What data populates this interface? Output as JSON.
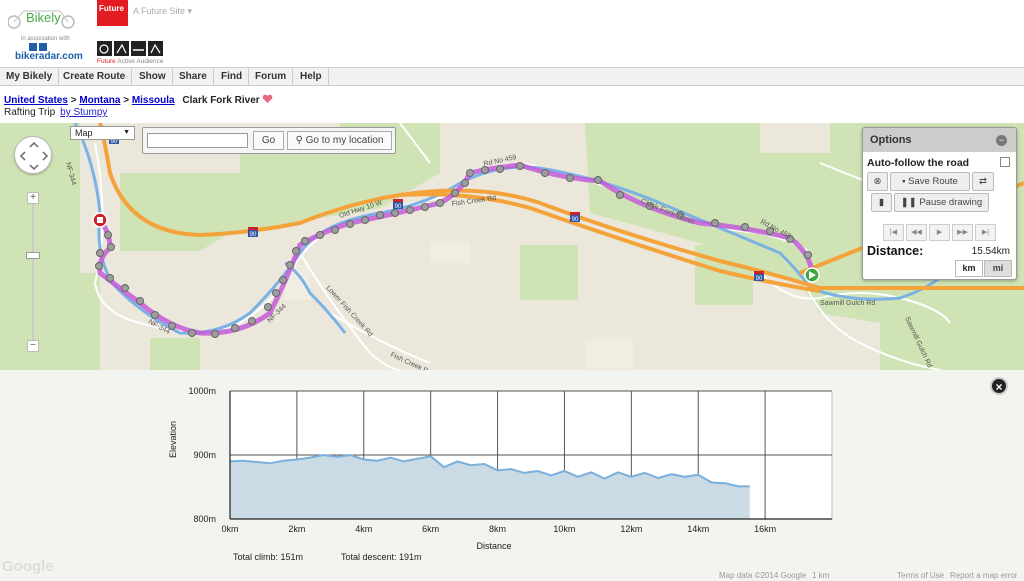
{
  "header": {
    "logo_text": "Bikely",
    "assoc_text": "in association with",
    "bikeradar_text": "bikeradar.com",
    "future_badge": "Future",
    "future_site_label": "A Future Site ▾",
    "audience_prefix": "Future",
    "audience_text": "Active Audience"
  },
  "nav": {
    "items": [
      "My Bikely",
      "Create Route",
      "Show",
      "Share",
      "Find",
      "Forum",
      "Help"
    ]
  },
  "breadcrumb": {
    "country": "United States",
    "state": "Montana",
    "city": "Missoula",
    "route_name": "Clark Fork River",
    "sep": ">"
  },
  "route_meta": {
    "type": "Rafting Trip",
    "author_link": "by Stumpy"
  },
  "map": {
    "type_select": "Map",
    "search_value": "",
    "go_label": "Go",
    "locate_label": "Go to my location",
    "labels": {
      "nf344_a": "NF-344",
      "nf344_b": "NF-344",
      "nf344_c": "NF-344",
      "old_hwy": "Old Hwy 10 W",
      "fish_creek": "Fish Creek Rd",
      "fish_creek2": "Fish Creek Rd",
      "lower_fish": "Lower Fish Creek Rd",
      "clark_fork": "Clark Fork River",
      "rd459": "Rd No 459",
      "rd459b": "Rd No 459",
      "sawmill": "Sawmill Gulch Rd",
      "sawmill2": "Sawmill Gulch Rd",
      "i90a": "90",
      "i90b": "90",
      "i90c": "90",
      "i90d": "90",
      "i90e": "90"
    },
    "colors": {
      "land": "#ebe7db",
      "park": "#cfe3b4",
      "highway": "#f4a23a",
      "water": "#7bb2e6",
      "route": "#c35bd8"
    }
  },
  "options": {
    "title": "Options",
    "auto_follow_label": "Auto-follow the road",
    "save_label": "Save Route",
    "pause_label": "Pause drawing",
    "distance_label": "Distance:",
    "distance_value": "15.54km",
    "unit_km": "km",
    "unit_mi": "mi"
  },
  "elevation": {
    "total_climb": "Total climb: 151m",
    "total_descent": "Total descent: 191m",
    "attribution": {
      "map_data": "Map data ©2014 Google",
      "scale": "1 km",
      "terms": "Terms of Use",
      "report": "Report a map error"
    },
    "google": "Google"
  },
  "chart_data": {
    "type": "area",
    "xlabel": "Distance",
    "ylabel": "Elevation",
    "x_ticks": [
      "0km",
      "2km",
      "4km",
      "6km",
      "8km",
      "10km",
      "12km",
      "14km",
      "16km"
    ],
    "y_ticks": [
      "800m",
      "900m",
      "1000m"
    ],
    "xlim": [
      0,
      18
    ],
    "ylim": [
      800,
      1000
    ],
    "x_km": [
      0,
      0.4,
      0.8,
      1.2,
      1.6,
      2.0,
      2.4,
      2.8,
      3.2,
      3.6,
      4.0,
      4.4,
      4.8,
      5.2,
      5.6,
      6.0,
      6.4,
      6.8,
      7.2,
      7.6,
      8.0,
      8.4,
      8.8,
      9.2,
      9.6,
      10.0,
      10.4,
      10.8,
      11.2,
      11.6,
      12.0,
      12.4,
      12.8,
      13.2,
      13.6,
      14.0,
      14.4,
      14.8,
      15.2,
      15.54
    ],
    "elevation_m": [
      890,
      891,
      889,
      887,
      891,
      893,
      896,
      900,
      897,
      900,
      893,
      891,
      896,
      890,
      894,
      898,
      881,
      890,
      884,
      886,
      876,
      878,
      872,
      875,
      868,
      875,
      866,
      873,
      863,
      873,
      866,
      872,
      864,
      870,
      866,
      869,
      857,
      856,
      851,
      851
    ]
  }
}
